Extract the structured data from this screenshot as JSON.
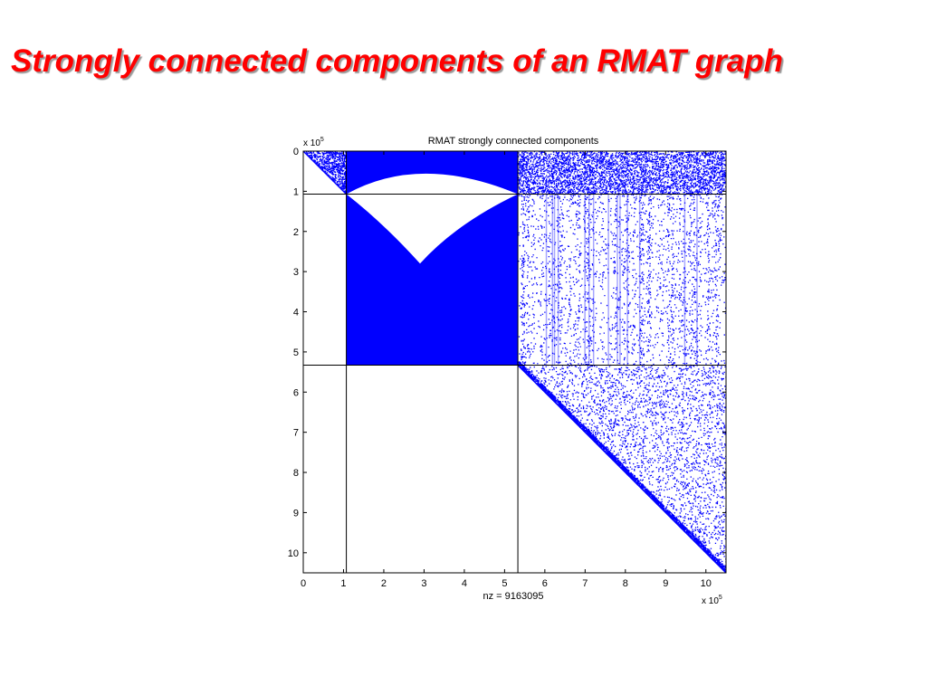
{
  "slide": {
    "title": "Strongly connected components of an RMAT graph"
  },
  "chart_data": {
    "type": "spy",
    "title": "RMAT strongly connected components",
    "xlabel": "nz = 9163095",
    "ylabel": "",
    "nz": 9163095,
    "x_ticks": [
      0,
      1,
      2,
      3,
      4,
      5,
      6,
      7,
      8,
      9,
      10
    ],
    "y_ticks": [
      0,
      1,
      2,
      3,
      4,
      5,
      6,
      7,
      8,
      9,
      10
    ],
    "x_multiplier": "x 10",
    "y_multiplier": "x 10",
    "exponent": "5",
    "xlim": [
      0,
      10.5
    ],
    "ylim": [
      0,
      10.5
    ],
    "y_reversed": true,
    "grid": false,
    "legend": "none",
    "component_boundaries": [
      1.07,
      5.33
    ],
    "marker_color": "#0000ff",
    "region_densities": [
      {
        "name": "component-1-diagonal",
        "rows": [
          0,
          1.07
        ],
        "cols": [
          0,
          1.07
        ],
        "density": 0.45
      },
      {
        "name": "top-band-middle",
        "rows": [
          0,
          1.07
        ],
        "cols": [
          1.07,
          5.33
        ],
        "density": 1.0
      },
      {
        "name": "top-band-right",
        "rows": [
          0,
          1.07
        ],
        "cols": [
          5.33,
          10.5
        ],
        "density": 0.2
      },
      {
        "name": "giant-component",
        "rows": [
          1.07,
          5.33
        ],
        "cols": [
          1.07,
          5.33
        ],
        "density": 1.0
      },
      {
        "name": "giant-to-tail",
        "rows": [
          1.07,
          5.33
        ],
        "cols": [
          5.33,
          10.5
        ],
        "density": 0.55
      },
      {
        "name": "tail-components",
        "rows": [
          5.33,
          10.5
        ],
        "cols": [
          5.33,
          10.5
        ],
        "density": 0.12
      }
    ]
  }
}
